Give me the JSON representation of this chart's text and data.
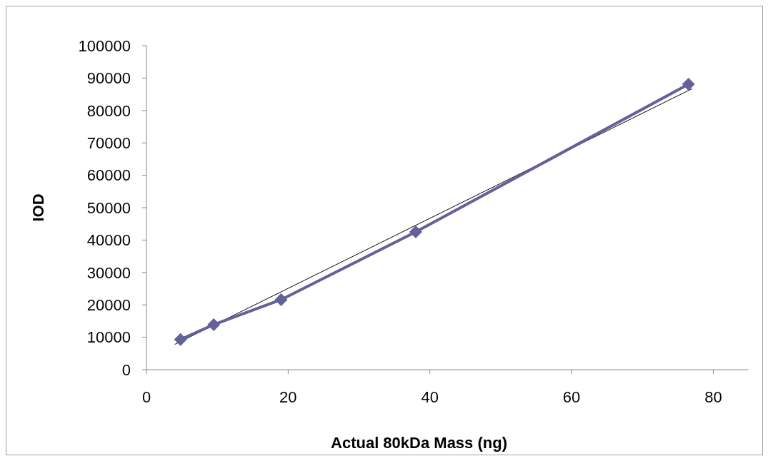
{
  "chart_data": {
    "type": "line",
    "xlabel": "Actual 80kDa Mass (ng)",
    "ylabel": "IOD",
    "xlim": [
      0,
      85
    ],
    "xticks": [
      0,
      20,
      40,
      60,
      80
    ],
    "ylim": [
      0,
      100000
    ],
    "yticks": [
      0,
      10000,
      20000,
      30000,
      40000,
      50000,
      60000,
      70000,
      80000,
      90000,
      100000
    ],
    "grid": false,
    "marker": "diamond",
    "series": [
      {
        "color": "#64609a",
        "x": [
          4.8,
          9.5,
          19,
          38,
          76.5
        ],
        "values": [
          9300,
          13900,
          21600,
          42500,
          88100
        ]
      },
      {
        "type": "line",
        "color": "#000000",
        "marker": "none",
        "x": [
          4,
          77
        ],
        "values": [
          7800,
          86700
        ]
      }
    ]
  }
}
